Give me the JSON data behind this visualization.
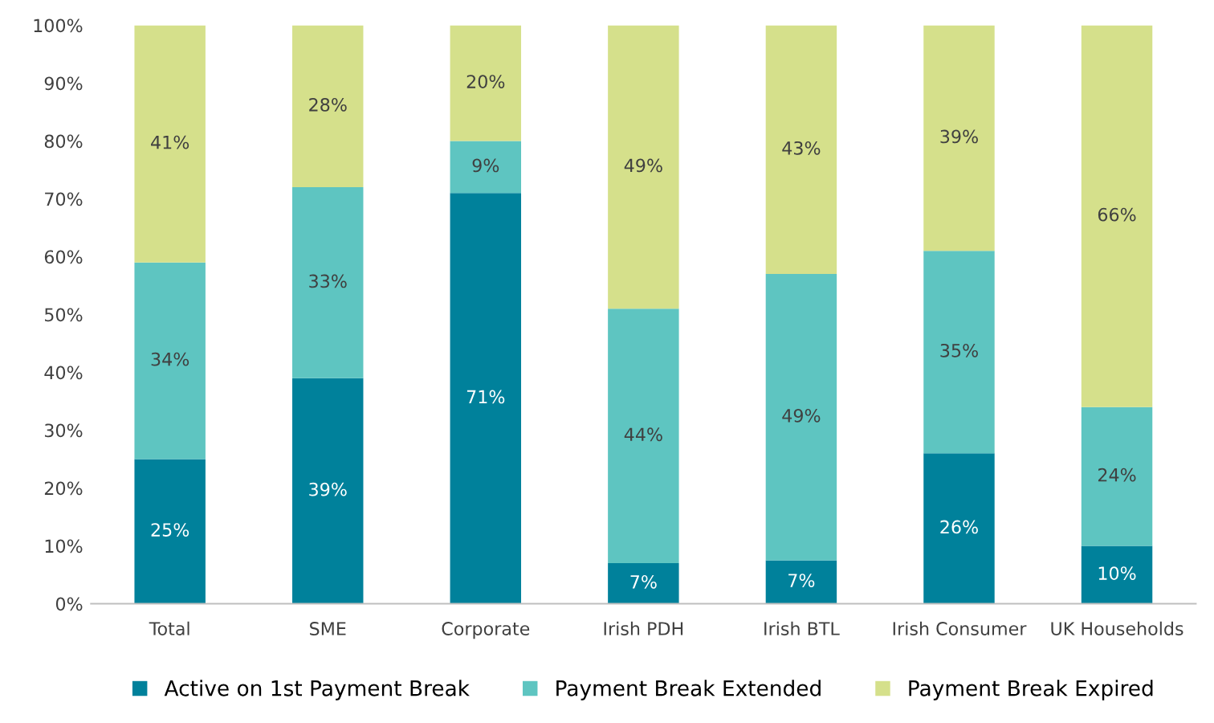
{
  "chart_data": {
    "type": "bar",
    "stacked": true,
    "categories": [
      "Total",
      "SME",
      "Corporate",
      "Irish PDH",
      "Irish BTL",
      "Irish Consumer",
      "UK Households"
    ],
    "series": [
      {
        "name": "Active on 1st Payment Break",
        "color": "#00819b",
        "values": [
          25,
          39,
          71,
          7,
          7.5,
          26,
          10
        ],
        "value_labels": [
          "25%",
          "39%",
          "71%",
          "7%",
          "7%",
          "26%",
          "10%"
        ]
      },
      {
        "name": "Payment Break Extended",
        "color": "#5ec5c1",
        "values": [
          34,
          33,
          9,
          44,
          49.5,
          35,
          24
        ],
        "value_labels": [
          "34%",
          "33%",
          "9%",
          "44%",
          "49%",
          "35%",
          "24%"
        ]
      },
      {
        "name": "Payment Break Expired",
        "color": "#d5e08b",
        "values": [
          41,
          28,
          20,
          49,
          43,
          39,
          66
        ],
        "value_labels": [
          "41%",
          "28%",
          "20%",
          "49%",
          "43%",
          "39%",
          "66%"
        ]
      }
    ],
    "ylim": [
      0,
      100
    ],
    "yticks": [
      {
        "value": 0,
        "label": "0%"
      },
      {
        "value": 10,
        "label": "10%"
      },
      {
        "value": 20,
        "label": "20%"
      },
      {
        "value": 30,
        "label": "30%"
      },
      {
        "value": 40,
        "label": "40%"
      },
      {
        "value": 50,
        "label": "50%"
      },
      {
        "value": 60,
        "label": "60%"
      },
      {
        "value": 70,
        "label": "70%"
      },
      {
        "value": 80,
        "label": "80%"
      },
      {
        "value": 90,
        "label": "90%"
      },
      {
        "value": 100,
        "label": "100%"
      }
    ],
    "grid": false,
    "legend": "bottom"
  }
}
